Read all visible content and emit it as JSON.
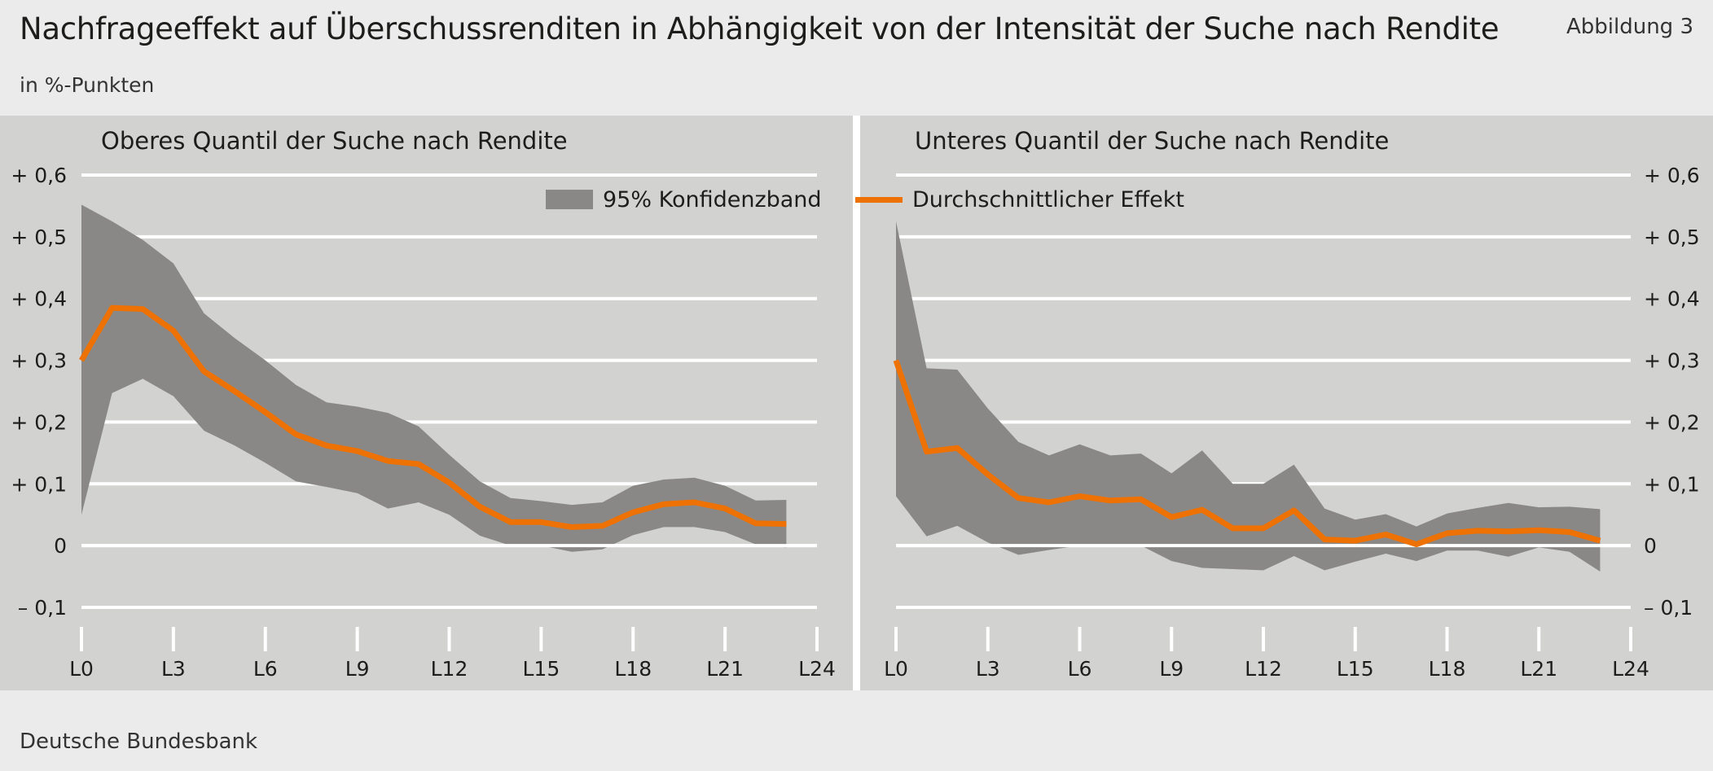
{
  "header": {
    "title": "Nachfrageeffekt auf Überschussrenditen in Abhängigkeit von der Intensität der Suche nach Rendite",
    "figure_label": "Abbildung 3",
    "unit": "in %-Punkten"
  },
  "footer": {
    "source": "Deutsche Bundesbank"
  },
  "legend": {
    "band_label": "95% Konfidenzband",
    "line_label": "Durchschnittlicher Effekt"
  },
  "colors": {
    "band": "#898887",
    "line": "#ee7203",
    "panel_bg": "#d2d2d1",
    "grid": "#ffffff"
  },
  "chart_data": [
    {
      "type": "area",
      "title": "Oberes Quantil der Suche nach Rendite",
      "y_axis_side": "left",
      "ylim": [
        -0.1,
        0.6
      ],
      "y_ticks": [
        0.6,
        0.5,
        0.4,
        0.3,
        0.2,
        0.1,
        0,
        -0.1
      ],
      "y_tick_labels": [
        "+ 0,6",
        "+ 0,5",
        "+ 0,4",
        "+ 0,3",
        "+ 0,2",
        "+ 0,1",
        "0",
        "– 0,1"
      ],
      "x_ticks": [
        0,
        3,
        6,
        9,
        12,
        15,
        18,
        21,
        24
      ],
      "x_tick_labels": [
        "L0",
        "L3",
        "L6",
        "L9",
        "L12",
        "L15",
        "L18",
        "L21",
        "L24"
      ],
      "x": [
        0,
        1,
        2,
        3,
        4,
        5,
        6,
        7,
        8,
        9,
        10,
        11,
        12,
        13,
        14,
        15,
        16,
        17,
        18,
        19,
        20,
        21,
        22,
        23
      ],
      "series": [
        {
          "name": "Durchschnittlicher Effekt",
          "kind": "line",
          "values": [
            0.3,
            0.385,
            0.383,
            0.348,
            0.282,
            0.25,
            0.216,
            0.18,
            0.162,
            0.153,
            0.137,
            0.132,
            0.102,
            0.063,
            0.038,
            0.038,
            0.03,
            0.032,
            0.054,
            0.067,
            0.07,
            0.06,
            0.036,
            0.035
          ]
        },
        {
          "name": "95% Konfidenzband",
          "kind": "band",
          "upper": [
            0.552,
            0.525,
            0.495,
            0.457,
            0.376,
            0.336,
            0.3,
            0.26,
            0.232,
            0.225,
            0.215,
            0.193,
            0.147,
            0.104,
            0.077,
            0.072,
            0.066,
            0.07,
            0.097,
            0.107,
            0.11,
            0.097,
            0.073,
            0.074
          ],
          "lower": [
            0.05,
            0.247,
            0.27,
            0.242,
            0.186,
            0.162,
            0.134,
            0.104,
            0.095,
            0.085,
            0.06,
            0.07,
            0.05,
            0.016,
            0.0,
            0.0,
            -0.01,
            -0.006,
            0.017,
            0.03,
            0.03,
            0.022,
            0.002,
            -0.003
          ]
        }
      ]
    },
    {
      "type": "area",
      "title": "Unteres Quantil der Suche nach Rendite",
      "y_axis_side": "right",
      "ylim": [
        -0.1,
        0.6
      ],
      "y_ticks": [
        0.6,
        0.5,
        0.4,
        0.3,
        0.2,
        0.1,
        0,
        -0.1
      ],
      "y_tick_labels": [
        "+ 0,6",
        "+ 0,5",
        "+ 0,4",
        "+ 0,3",
        "+ 0,2",
        "+ 0,1",
        "0",
        "– 0,1"
      ],
      "x_ticks": [
        0,
        3,
        6,
        9,
        12,
        15,
        18,
        21,
        24
      ],
      "x_tick_labels": [
        "L0",
        "L3",
        "L6",
        "L9",
        "L12",
        "L15",
        "L18",
        "L21",
        "L24"
      ],
      "x": [
        0,
        1,
        2,
        3,
        4,
        5,
        6,
        7,
        8,
        9,
        10,
        11,
        12,
        13,
        14,
        15,
        16,
        17,
        18,
        19,
        20,
        21,
        22,
        23
      ],
      "series": [
        {
          "name": "Durchschnittlicher Effekt",
          "kind": "line",
          "values": [
            0.3,
            0.152,
            0.158,
            0.115,
            0.077,
            0.07,
            0.08,
            0.073,
            0.075,
            0.046,
            0.058,
            0.028,
            0.028,
            0.057,
            0.01,
            0.008,
            0.018,
            0.002,
            0.02,
            0.024,
            0.023,
            0.025,
            0.022,
            0.008
          ]
        },
        {
          "name": "95% Konfidenzband",
          "kind": "band",
          "upper": [
            0.525,
            0.287,
            0.285,
            0.222,
            0.168,
            0.146,
            0.164,
            0.146,
            0.149,
            0.117,
            0.154,
            0.1,
            0.1,
            0.131,
            0.06,
            0.042,
            0.051,
            0.031,
            0.052,
            0.061,
            0.069,
            0.062,
            0.063,
            0.059
          ]
        },
        {
          "name": "95% Konfidenzband (untere Grenze)",
          "kind": "band_lower",
          "lower": [
            0.08,
            0.015,
            0.032,
            0.005,
            -0.015,
            -0.007,
            0.0,
            0.0,
            0.0,
            -0.025,
            -0.036,
            -0.038,
            -0.04,
            -0.017,
            -0.04,
            -0.026,
            -0.013,
            -0.025,
            -0.008,
            -0.008,
            -0.018,
            -0.003,
            -0.01,
            -0.042
          ]
        }
      ]
    }
  ]
}
